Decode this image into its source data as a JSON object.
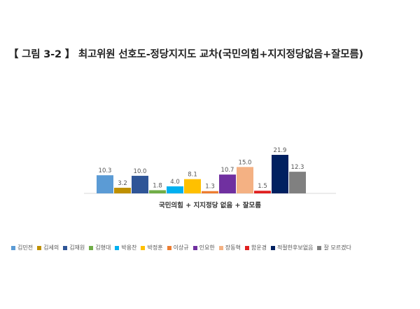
{
  "title": "【 그림 3-2 】 최고위원 선호도-정당지지도 교차(국민의힘+지지정당없음+잘모름)",
  "chart_data": {
    "type": "bar",
    "categories": [
      "국민의힘 + 지지정당 없음 + 잘모름"
    ],
    "series": [
      {
        "name": "김민전",
        "values": [
          10.3
        ],
        "color": "#5b9bd5"
      },
      {
        "name": "김세의",
        "values": [
          3.2
        ],
        "color": "#bf9000"
      },
      {
        "name": "김재원",
        "values": [
          10.0
        ],
        "color": "#2f5597"
      },
      {
        "name": "김형대",
        "values": [
          1.8
        ],
        "color": "#70ad47"
      },
      {
        "name": "박용찬",
        "values": [
          4.0
        ],
        "color": "#00b0f0"
      },
      {
        "name": "박정훈",
        "values": [
          8.1
        ],
        "color": "#ffc000"
      },
      {
        "name": "이상규",
        "values": [
          1.3
        ],
        "color": "#ed7d31"
      },
      {
        "name": "인요한",
        "values": [
          10.7
        ],
        "color": "#7030a0"
      },
      {
        "name": "장동혁",
        "values": [
          15.0
        ],
        "color": "#f4b183"
      },
      {
        "name": "함운경",
        "values": [
          1.5
        ],
        "color": "#e02020"
      },
      {
        "name": "적절한후보없음",
        "values": [
          21.9
        ],
        "color": "#002060"
      },
      {
        "name": "잘 모르겠다",
        "values": [
          12.3
        ],
        "color": "#808080"
      }
    ],
    "value_labels": [
      "10.3",
      "3.2",
      "10.0",
      "1.8",
      "4.0",
      "8.1",
      "1.3",
      "10.7",
      "15.0",
      "1.5",
      "21.9",
      "12.3"
    ],
    "ylim": [
      0,
      25
    ],
    "grid": false,
    "legend_position": "bottom"
  }
}
